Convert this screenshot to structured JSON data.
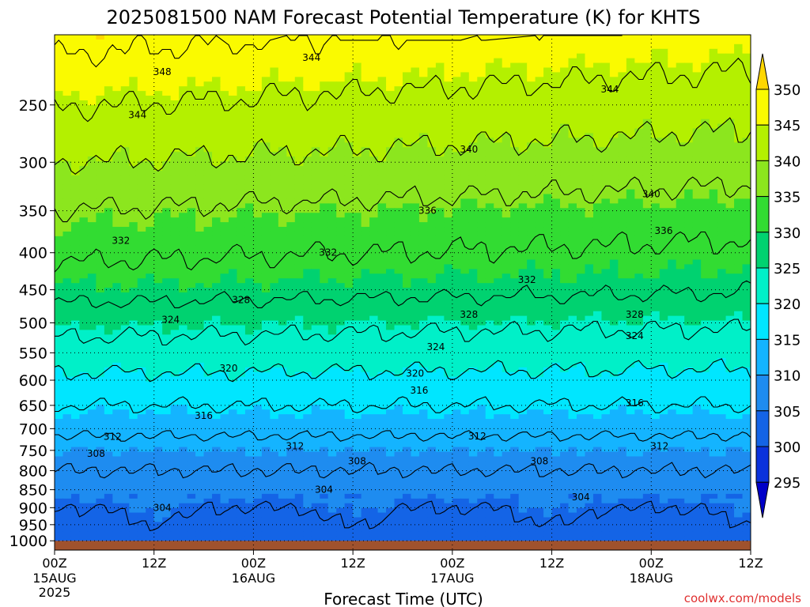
{
  "chart_data": {
    "type": "heatmap",
    "title": "2025081500 NAM Forecast Potential Temperature (K) for KHTS",
    "xlabel": "Forecast Time (UTC)",
    "ylabel": "",
    "credit": "coolwx.com/models",
    "x_ticks": [
      {
        "hour": 0,
        "label": "00Z",
        "date": "15AUG",
        "year": "2025"
      },
      {
        "hour": 12,
        "label": "12Z",
        "date": "",
        "year": ""
      },
      {
        "hour": 24,
        "label": "00Z",
        "date": "16AUG",
        "year": ""
      },
      {
        "hour": 36,
        "label": "12Z",
        "date": "",
        "year": ""
      },
      {
        "hour": 48,
        "label": "00Z",
        "date": "17AUG",
        "year": ""
      },
      {
        "hour": 60,
        "label": "12Z",
        "date": "",
        "year": ""
      },
      {
        "hour": 72,
        "label": "00Z",
        "date": "18AUG",
        "year": ""
      },
      {
        "hour": 84,
        "label": "12Z",
        "date": "",
        "year": ""
      }
    ],
    "xlim": [
      0,
      84
    ],
    "y_ticks": [
      250,
      300,
      350,
      400,
      450,
      500,
      550,
      600,
      650,
      700,
      750,
      800,
      850,
      900,
      950,
      1000
    ],
    "ylim": [
      1030,
      200
    ],
    "y_scale": "log-pressure",
    "grid": true,
    "surface_pressure": 1000,
    "surface_color": "#a0522d",
    "colorbar": {
      "levels": [
        295,
        300,
        305,
        310,
        315,
        320,
        325,
        330,
        335,
        340,
        345,
        350
      ],
      "colors": [
        "#0000c8",
        "#0a32dc",
        "#1464e6",
        "#1e8cf0",
        "#14b4ff",
        "#00e6ff",
        "#00f0c8",
        "#00d270",
        "#32dc32",
        "#8ce61e",
        "#b4f000",
        "#fafa00",
        "#ffd700"
      ],
      "placement": "right"
    },
    "profile": {
      "pressure": [
        1000,
        950,
        900,
        850,
        800,
        750,
        700,
        650,
        600,
        550,
        500,
        450,
        400,
        350,
        300,
        250,
        200
      ],
      "theta": [
        301,
        302.5,
        304,
        306,
        308,
        310,
        313,
        316,
        319,
        322,
        325,
        329,
        332,
        335,
        339,
        343,
        348
      ]
    },
    "contour_levels": [
      304,
      308,
      312,
      316,
      320,
      324,
      328,
      332,
      336,
      340,
      344,
      348
    ],
    "contour_labels": [
      {
        "t": 13,
        "p": 225,
        "v": "348"
      },
      {
        "t": 31,
        "p": 215,
        "v": "344"
      },
      {
        "t": 10,
        "p": 258,
        "v": "344"
      },
      {
        "t": 67,
        "p": 238,
        "v": "344"
      },
      {
        "t": 50,
        "p": 288,
        "v": "340"
      },
      {
        "t": 72,
        "p": 332,
        "v": "340"
      },
      {
        "t": 45,
        "p": 350,
        "v": "336"
      },
      {
        "t": 73.5,
        "p": 373,
        "v": "336"
      },
      {
        "t": 8,
        "p": 385,
        "v": "332"
      },
      {
        "t": 33,
        "p": 400,
        "v": "332"
      },
      {
        "t": 57,
        "p": 436,
        "v": "332"
      },
      {
        "t": 22.5,
        "p": 465,
        "v": "328"
      },
      {
        "t": 50,
        "p": 487,
        "v": "328"
      },
      {
        "t": 70,
        "p": 487,
        "v": "328"
      },
      {
        "t": 14,
        "p": 495,
        "v": "324"
      },
      {
        "t": 46,
        "p": 540,
        "v": "324"
      },
      {
        "t": 70,
        "p": 521,
        "v": "324"
      },
      {
        "t": 21,
        "p": 578,
        "v": "320"
      },
      {
        "t": 43.5,
        "p": 587,
        "v": "320"
      },
      {
        "t": 44,
        "p": 620,
        "v": "316"
      },
      {
        "t": 18,
        "p": 672,
        "v": "316"
      },
      {
        "t": 70,
        "p": 645,
        "v": "316"
      },
      {
        "t": 7,
        "p": 718,
        "v": "312"
      },
      {
        "t": 29,
        "p": 740,
        "v": "312"
      },
      {
        "t": 51,
        "p": 717,
        "v": "312"
      },
      {
        "t": 73,
        "p": 740,
        "v": "312"
      },
      {
        "t": 5,
        "p": 758,
        "v": "308"
      },
      {
        "t": 36.5,
        "p": 776,
        "v": "308"
      },
      {
        "t": 58.5,
        "p": 776,
        "v": "308"
      },
      {
        "t": 32.5,
        "p": 850,
        "v": "304"
      },
      {
        "t": 13,
        "p": 900,
        "v": "304"
      },
      {
        "t": 63.5,
        "p": 870,
        "v": "304"
      }
    ]
  }
}
